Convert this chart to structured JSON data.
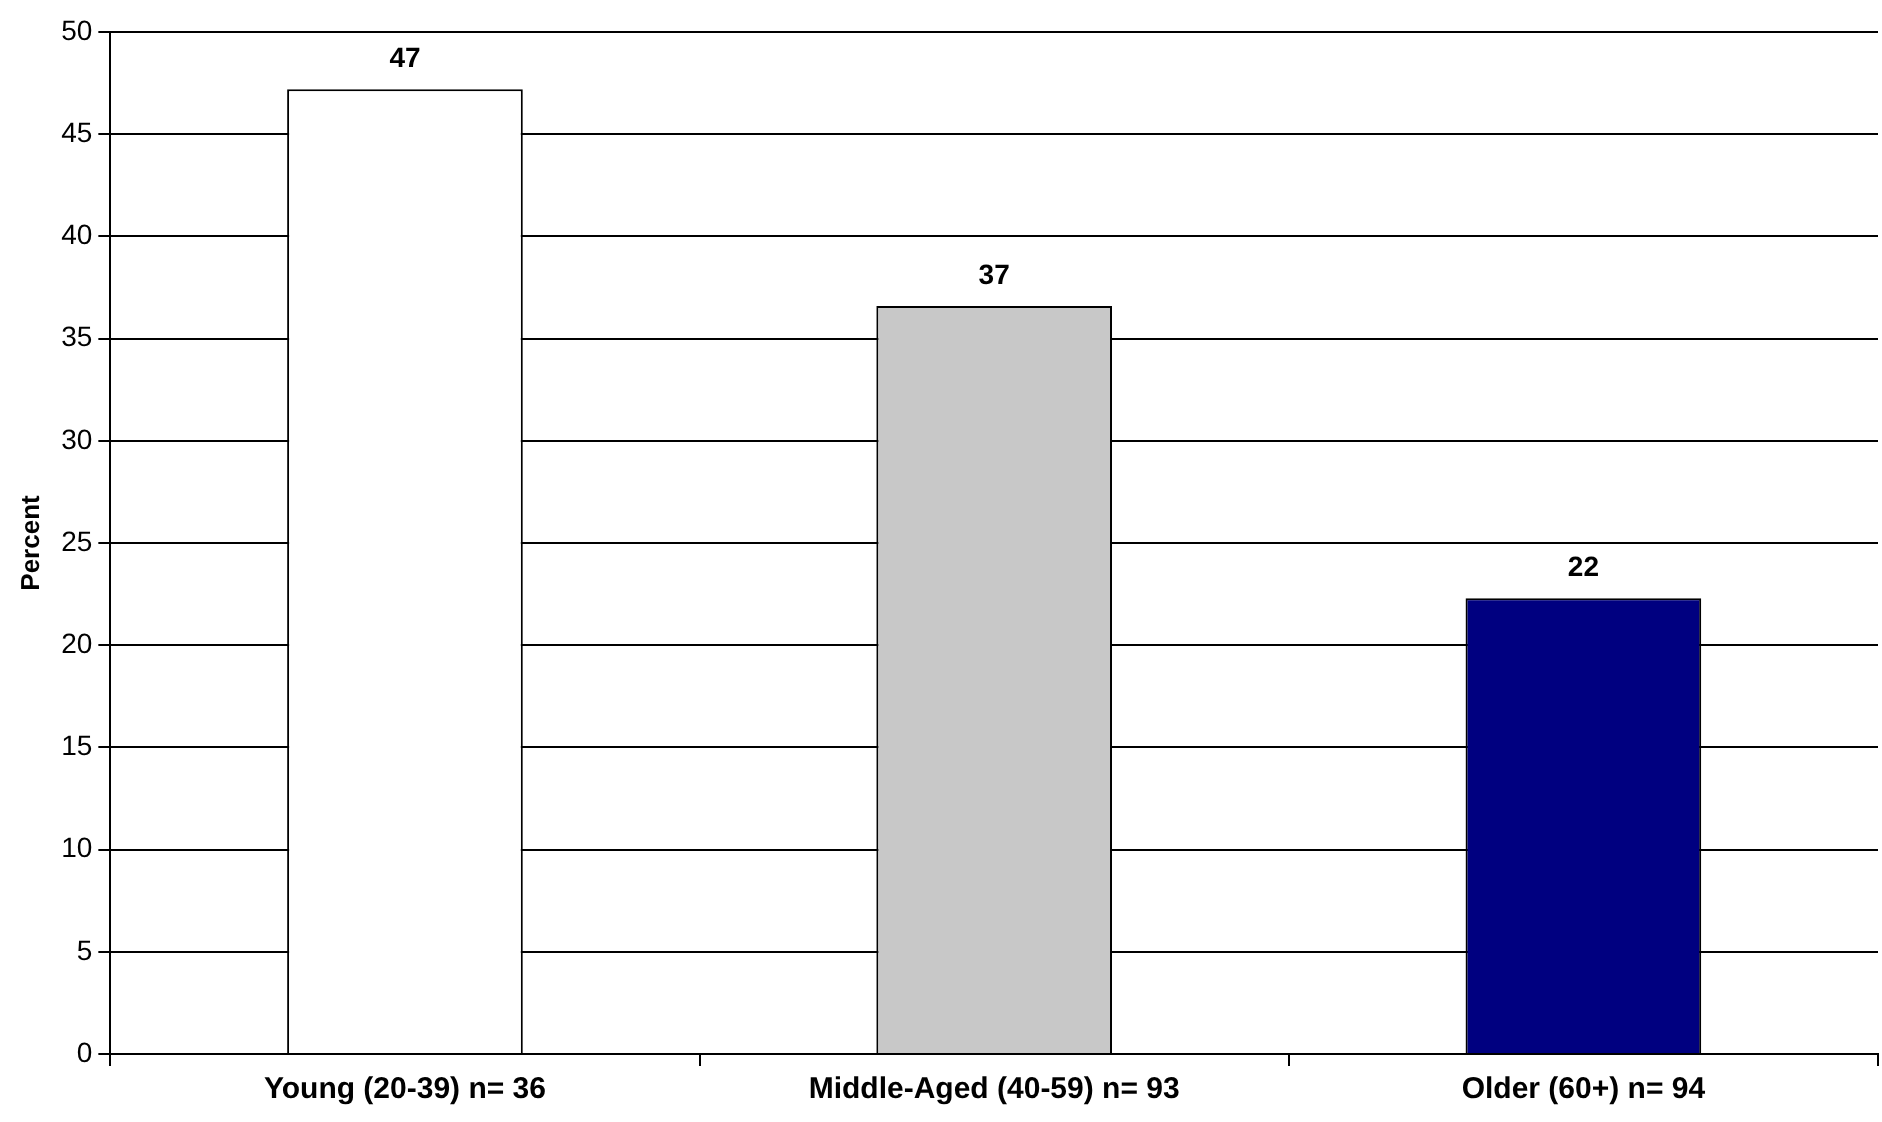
{
  "chart_data": {
    "type": "bar",
    "ylabel": "Percent",
    "categories": [
      "Young (20-39) n= 36",
      "Middle-Aged (40-59) n= 93",
      "Older (60+) n= 94"
    ],
    "values": [
      47.2,
      36.6,
      22.3
    ],
    "value_labels": [
      "47",
      "37",
      "22"
    ],
    "colors": [
      "#ffffff",
      "#c8c8c8",
      "#000080"
    ],
    "ylim": [
      0,
      50
    ],
    "yticks": [
      0,
      5,
      10,
      15,
      20,
      25,
      30,
      35,
      40,
      45,
      50
    ],
    "grid": "y",
    "legend": false
  }
}
